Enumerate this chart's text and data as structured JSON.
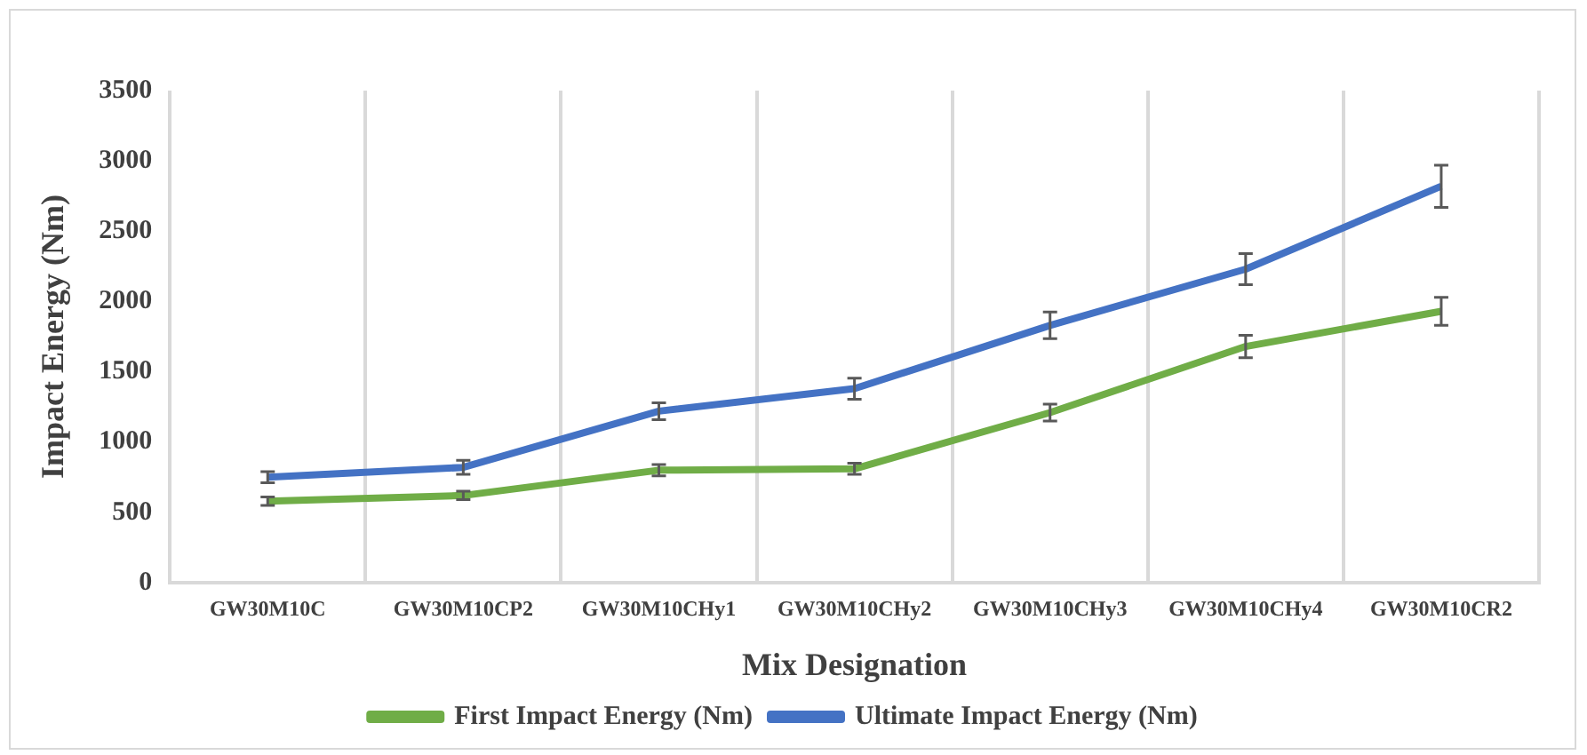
{
  "chart_data": {
    "type": "line",
    "xlabel": "Mix Designation",
    "ylabel": "Impact Energy (Nm)",
    "categories": [
      "GW30M10C",
      "GW30M10CP2",
      "GW30M10CHy1",
      "GW30M10CHy2",
      "GW30M10CHy3",
      "GW30M10CHy4",
      "GW30M10CR2"
    ],
    "series": [
      {
        "name": "First Impact Energy (Nm)",
        "color": "#70ad47",
        "values": [
          580,
          620,
          800,
          810,
          1210,
          1680,
          1930
        ],
        "errors": [
          30,
          30,
          40,
          40,
          60,
          80,
          100
        ]
      },
      {
        "name": "Ultimate Impact Energy (Nm)",
        "color": "#4472c4",
        "values": [
          750,
          820,
          1220,
          1380,
          1830,
          2230,
          2820
        ],
        "errors": [
          40,
          50,
          60,
          75,
          95,
          110,
          150
        ]
      }
    ],
    "ylim": [
      0,
      3500
    ],
    "yticks": [
      0,
      500,
      1000,
      1500,
      2000,
      2500,
      3000,
      3500
    ],
    "grid": "x",
    "legend": "bottom",
    "line_style": "solid"
  }
}
